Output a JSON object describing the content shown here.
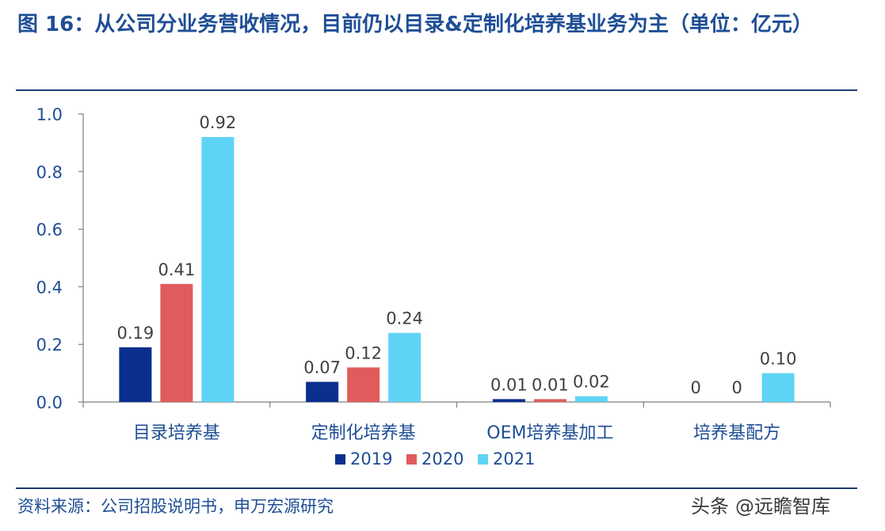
{
  "title": "图 16：从公司分业务营收情况，目前仍以目录&定制化培养基业务为主（单位：亿元）",
  "source": "资料来源：公司招股说明书，申万宏源研究",
  "watermark": {
    "brand": "头条",
    "handle": "@远瞻智库"
  },
  "colors": {
    "title": "#1f4e96",
    "rule": "#1f3a6e",
    "axis_text": "#1f4e96",
    "label_text": "#404040"
  },
  "chart_data": {
    "type": "bar",
    "categories": [
      "目录培养基",
      "定制化培养基",
      "OEM培养基加工",
      "培养基配方"
    ],
    "series": [
      {
        "name": "2019",
        "color": "#0a2f8f",
        "values": [
          0.19,
          0.07,
          0.01,
          0
        ],
        "labels": [
          "0.19",
          "0.07",
          "0.01",
          "0"
        ]
      },
      {
        "name": "2020",
        "color": "#e05c5c",
        "values": [
          0.41,
          0.12,
          0.01,
          0
        ],
        "labels": [
          "0.41",
          "0.12",
          "0.01",
          "0"
        ]
      },
      {
        "name": "2021",
        "color": "#5fd3f5",
        "values": [
          0.92,
          0.24,
          0.02,
          0.1
        ],
        "labels": [
          "0.92",
          "0.24",
          "0.02",
          "0.10"
        ]
      }
    ],
    "ylim": [
      0,
      1.0
    ],
    "yticks": [
      "0.0",
      "0.2",
      "0.4",
      "0.6",
      "0.8",
      "1.0"
    ],
    "grid": false,
    "legend": "bottom-center",
    "xlabel": "",
    "ylabel": ""
  }
}
